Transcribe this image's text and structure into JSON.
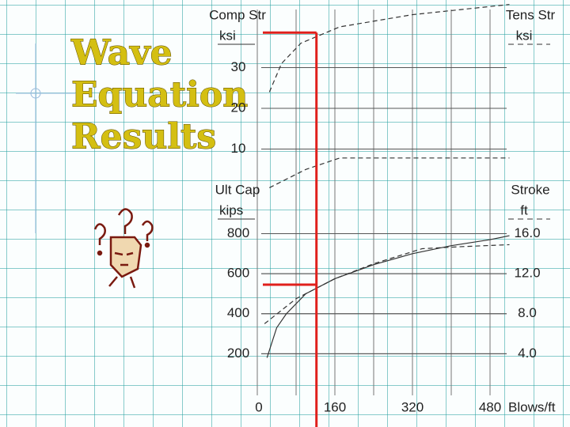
{
  "slide": {
    "title": [
      "Wave",
      "Equation",
      "Results"
    ]
  },
  "chart_data": [
    {
      "type": "line",
      "ylabel": "Comp Str",
      "yunit": "ksi",
      "y2label": "Tens Str",
      "y2unit": "ksi",
      "xlim": [
        0,
        520
      ],
      "ylim": [
        0,
        46.6
      ],
      "yticks": [
        10,
        20,
        30
      ],
      "y2lim": [
        0,
        46.6
      ],
      "grid": true,
      "series": [
        {
          "color": "#333333",
          "dash": true,
          "x": [
            25,
            50,
            90,
            170,
            320,
            520
          ],
          "values": [
            24,
            31,
            36,
            40,
            43,
            45.5
          ]
        },
        {
          "color": "#333333",
          "dash": true,
          "axis": "y2",
          "x": [
            25,
            100,
            170,
            520
          ],
          "values": [
            0.5,
            5,
            7.8,
            7.8
          ]
        }
      ],
      "reading": {
        "color": "#e0201c",
        "x": 122,
        "y": 38.6
      }
    },
    {
      "type": "line",
      "ylabel": "Ult Cap",
      "yunit": "kips",
      "y2label": "Stroke",
      "y2unit": "ft",
      "xlabel": "Blows/ft",
      "xlim": [
        0,
        520
      ],
      "xticks": [
        0,
        160,
        320,
        480
      ],
      "ylim": [
        0,
        960
      ],
      "yticks": [
        200,
        400,
        600,
        800
      ],
      "y2lim": [
        0,
        19.2
      ],
      "y2ticks": [
        {
          "value": 4,
          "label": "4.0"
        },
        {
          "value": 8,
          "label": "8.0"
        },
        {
          "value": 12,
          "label": "12.0"
        },
        {
          "value": 16,
          "label": "16.0"
        }
      ],
      "grid": true,
      "series": [
        {
          "color": "#333333",
          "dash": false,
          "x": [
            20,
            40,
            60,
            100,
            160,
            240,
            320,
            400,
            480,
            520
          ],
          "values": [
            180,
            330,
            400,
            500,
            575,
            645,
            700,
            740,
            770,
            790
          ]
        },
        {
          "color": "#333333",
          "dash": true,
          "axis": "y2",
          "x": [
            15,
            80,
            160,
            240,
            340,
            420,
            520
          ],
          "values": [
            7.0,
            9.5,
            11.5,
            13.0,
            14.5,
            14.7,
            14.9
          ]
        }
      ],
      "reading": {
        "color": "#e0201c",
        "x": 122,
        "y": 545
      }
    }
  ]
}
